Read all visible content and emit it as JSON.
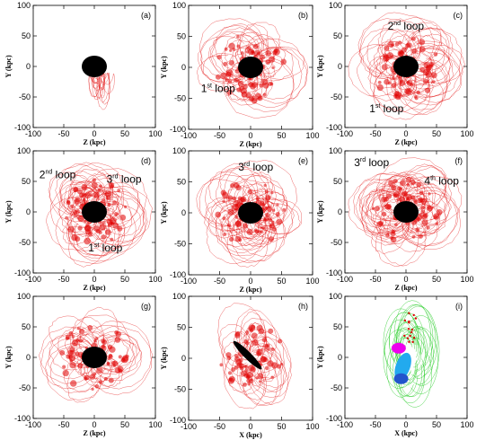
{
  "figure": {
    "panels": [
      {
        "label": "(a)",
        "xlabel": "Z (kpc)",
        "ylabel": "Y (kpc)",
        "annotations": []
      },
      {
        "label": "(b)",
        "xlabel": "Z (kpc)",
        "ylabel": "Y (kpc)",
        "annotations": [
          {
            "num": "1",
            "sup": "st",
            "text": " loop"
          }
        ]
      },
      {
        "label": "(c)",
        "xlabel": "Z (kpc)",
        "ylabel": "Y (kpc)",
        "annotations": [
          {
            "num": "2",
            "sup": "nd",
            "text": " loop"
          },
          {
            "num": "1",
            "sup": "st",
            "text": " loop"
          }
        ]
      },
      {
        "label": "(d)",
        "xlabel": "Z (kpc)",
        "ylabel": "Y (kpc)",
        "annotations": [
          {
            "num": "2",
            "sup": "nd",
            "text": " loop"
          },
          {
            "num": "3",
            "sup": "rd",
            "text": " loop"
          },
          {
            "num": "1",
            "sup": "st",
            "text": " loop"
          }
        ]
      },
      {
        "label": "(e)",
        "xlabel": "Z (kpc)",
        "ylabel": "Y (kpc)",
        "annotations": [
          {
            "num": "3",
            "sup": "rd",
            "text": " loop"
          }
        ]
      },
      {
        "label": "(f)",
        "xlabel": "Z (kpc)",
        "ylabel": "Y (kpc)",
        "annotations": [
          {
            "num": "3",
            "sup": "rd",
            "text": " loop"
          },
          {
            "num": "4",
            "sup": "th",
            "text": " loop"
          }
        ]
      },
      {
        "label": "(g)",
        "xlabel": "Z (kpc)",
        "ylabel": "Y (kpc)",
        "annotations": []
      },
      {
        "label": "(h)",
        "xlabel": "X (kpc)",
        "ylabel": "Y (kpc)",
        "annotations": []
      },
      {
        "label": "(i)",
        "xlabel": "X (kpc)",
        "ylabel": "Y (kpc)",
        "annotations": []
      }
    ]
  },
  "chart_data": {
    "type": "scatter",
    "layout": "3x3 grid of panels",
    "xlim": [
      -100,
      100
    ],
    "ylim": [
      -100,
      100
    ],
    "xticks": [
      -100,
      -50,
      0,
      50,
      100
    ],
    "yticks": [
      -100,
      -50,
      0,
      50,
      100
    ],
    "colors": {
      "disk": "#000000",
      "stream": "#e00000",
      "green": "#22cc22",
      "magenta": "#ee00ee",
      "cyan": "#22aaee",
      "blue": "#2255cc"
    }
  }
}
